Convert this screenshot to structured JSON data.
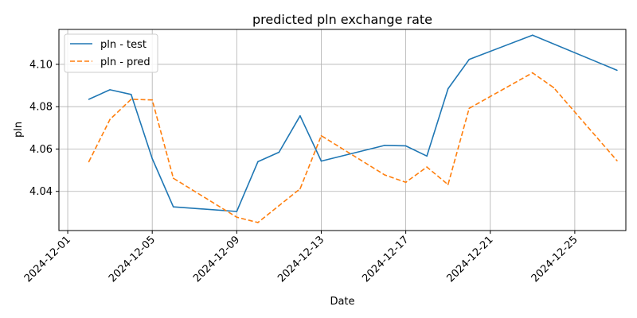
{
  "chart_data": {
    "type": "line",
    "title": "predicted pln exchange rate",
    "xlabel": "Date",
    "ylabel": "pln",
    "grid": true,
    "legend_position": "top-left",
    "xlim": [
      "2024-11-30T14:00",
      "2024-12-27T10:00"
    ],
    "ylim": [
      4.0215,
      4.1165
    ],
    "x_ticks": [
      "2024-12-01",
      "2024-12-05",
      "2024-12-09",
      "2024-12-13",
      "2024-12-17",
      "2024-12-21",
      "2024-12-25"
    ],
    "y_ticks": [
      4.04,
      4.06,
      4.08,
      4.1
    ],
    "y_tick_labels": [
      "4.04",
      "4.06",
      "4.08",
      "4.10"
    ],
    "series": [
      {
        "name": "pln - test",
        "color": "#1f77b4",
        "style": "solid",
        "points": [
          [
            "2024-12-02",
            4.0835
          ],
          [
            "2024-12-03",
            4.088
          ],
          [
            "2024-12-04",
            4.0858
          ],
          [
            "2024-12-05",
            4.0555
          ],
          [
            "2024-12-06",
            4.0327
          ],
          [
            "2024-12-09",
            4.0305
          ],
          [
            "2024-12-10",
            4.054
          ],
          [
            "2024-12-11",
            4.0585
          ],
          [
            "2024-12-12",
            4.0757
          ],
          [
            "2024-12-13",
            4.0543
          ],
          [
            "2024-12-16",
            4.0617
          ],
          [
            "2024-12-17",
            4.0615
          ],
          [
            "2024-12-18",
            4.0567
          ],
          [
            "2024-12-19",
            4.0885
          ],
          [
            "2024-12-20",
            4.1023
          ],
          [
            "2024-12-23",
            4.1138
          ],
          [
            "2024-12-27",
            4.0972
          ]
        ]
      },
      {
        "name": "pln - pred",
        "color": "#ff7f0e",
        "style": "dashed",
        "points": [
          [
            "2024-12-02",
            4.054
          ],
          [
            "2024-12-03",
            4.074
          ],
          [
            "2024-12-04",
            4.0835
          ],
          [
            "2024-12-05",
            4.0832
          ],
          [
            "2024-12-06",
            4.0462
          ],
          [
            "2024-12-09",
            4.0278
          ],
          [
            "2024-12-10",
            4.0253
          ],
          [
            "2024-12-12",
            4.0412
          ],
          [
            "2024-12-13",
            4.0663
          ],
          [
            "2024-12-16",
            4.0478
          ],
          [
            "2024-12-17",
            4.0443
          ],
          [
            "2024-12-18",
            4.0515
          ],
          [
            "2024-12-19",
            4.0432
          ],
          [
            "2024-12-20",
            4.0792
          ],
          [
            "2024-12-23",
            4.096
          ],
          [
            "2024-12-24",
            4.089
          ],
          [
            "2024-12-27",
            4.0545
          ]
        ]
      }
    ]
  }
}
